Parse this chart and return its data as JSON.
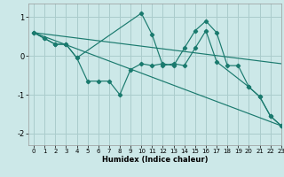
{
  "background_color": "#cce8e8",
  "grid_color": "#aacccc",
  "line_color": "#1a7a6e",
  "xlabel": "Humidex (Indice chaleur)",
  "xlim": [
    -0.5,
    23
  ],
  "ylim": [
    -2.3,
    1.35
  ],
  "yticks": [
    -2,
    -1,
    0,
    1
  ],
  "xticks": [
    0,
    1,
    2,
    3,
    4,
    5,
    6,
    7,
    8,
    9,
    10,
    11,
    12,
    13,
    14,
    15,
    16,
    17,
    18,
    19,
    20,
    21,
    22,
    23
  ],
  "series": [
    {
      "x": [
        0,
        1,
        2,
        3,
        4,
        5,
        6,
        7,
        8,
        9,
        10,
        11,
        12,
        13,
        14,
        15,
        16,
        17,
        18,
        19,
        20,
        21,
        22,
        23
      ],
      "y": [
        0.6,
        0.45,
        0.3,
        0.3,
        -0.05,
        -0.65,
        -0.65,
        -0.65,
        -1.0,
        -0.35,
        -0.2,
        -0.25,
        -0.2,
        -0.25,
        0.2,
        0.65,
        0.9,
        0.6,
        -0.25,
        -0.25,
        -0.8,
        -1.05,
        -1.55,
        -1.8
      ],
      "marker": true
    },
    {
      "x": [
        0,
        1,
        2,
        3,
        4,
        10,
        11,
        12,
        13,
        14,
        15,
        16,
        17,
        20,
        21,
        22,
        23
      ],
      "y": [
        0.6,
        0.45,
        0.3,
        0.3,
        -0.05,
        1.1,
        0.55,
        -0.25,
        -0.2,
        -0.25,
        0.2,
        0.65,
        -0.15,
        -0.8,
        -1.05,
        -1.55,
        -1.8
      ],
      "marker": true
    },
    {
      "x": [
        0,
        23
      ],
      "y": [
        0.6,
        -0.2
      ],
      "marker": false
    },
    {
      "x": [
        0,
        23
      ],
      "y": [
        0.6,
        -1.8
      ],
      "marker": false
    }
  ]
}
